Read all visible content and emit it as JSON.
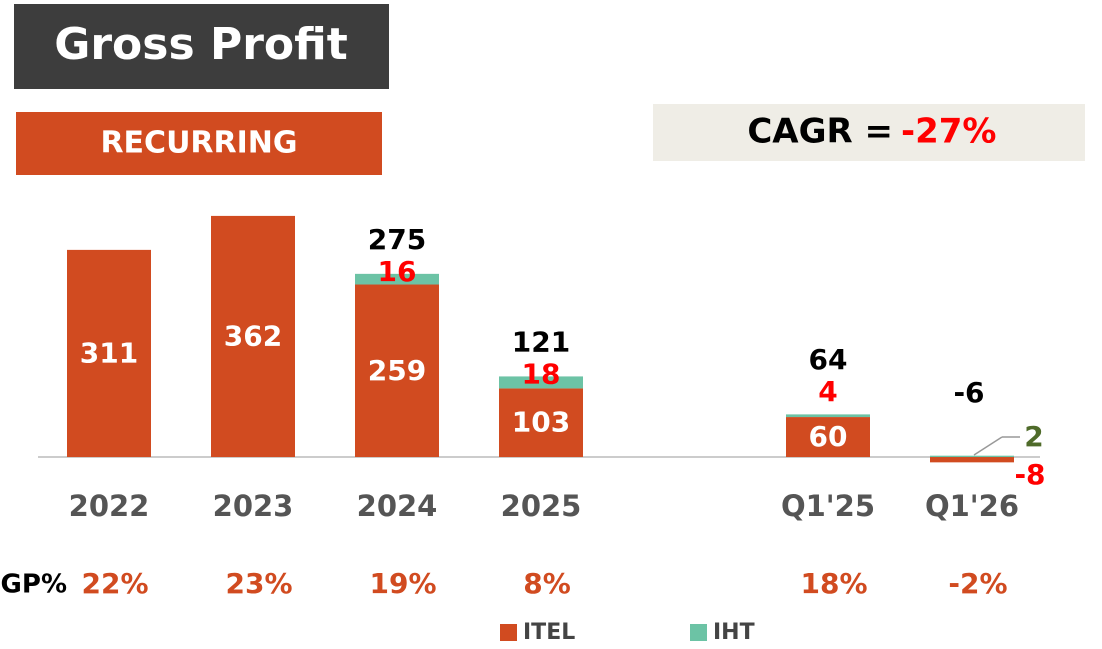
{
  "chart_data": {
    "type": "stacked_bar",
    "title": "Gross Profit",
    "subtitle": "RECURRING",
    "cagr": {
      "label": "CAGR =",
      "value": "-27%"
    },
    "categories": [
      "2022",
      "2023",
      "2024",
      "2025",
      "Q1'25",
      "Q1'26"
    ],
    "series": [
      {
        "name": "ITEL",
        "color": "#d14b20",
        "values": [
          311,
          362,
          259,
          103,
          60,
          -8
        ]
      },
      {
        "name": "IHT",
        "color": "#6cc3a5",
        "values": [
          null,
          null,
          16,
          18,
          4,
          2
        ]
      }
    ],
    "totals": [
      null,
      null,
      275,
      121,
      64,
      -6
    ],
    "ylim": [
      -30,
      400
    ],
    "gp_percent": {
      "label": "GP%",
      "values": [
        22,
        23,
        19,
        8,
        18,
        -2
      ],
      "value_labels": [
        "22%",
        "23%",
        "19%",
        "8%",
        "18%",
        "-2%"
      ]
    }
  }
}
